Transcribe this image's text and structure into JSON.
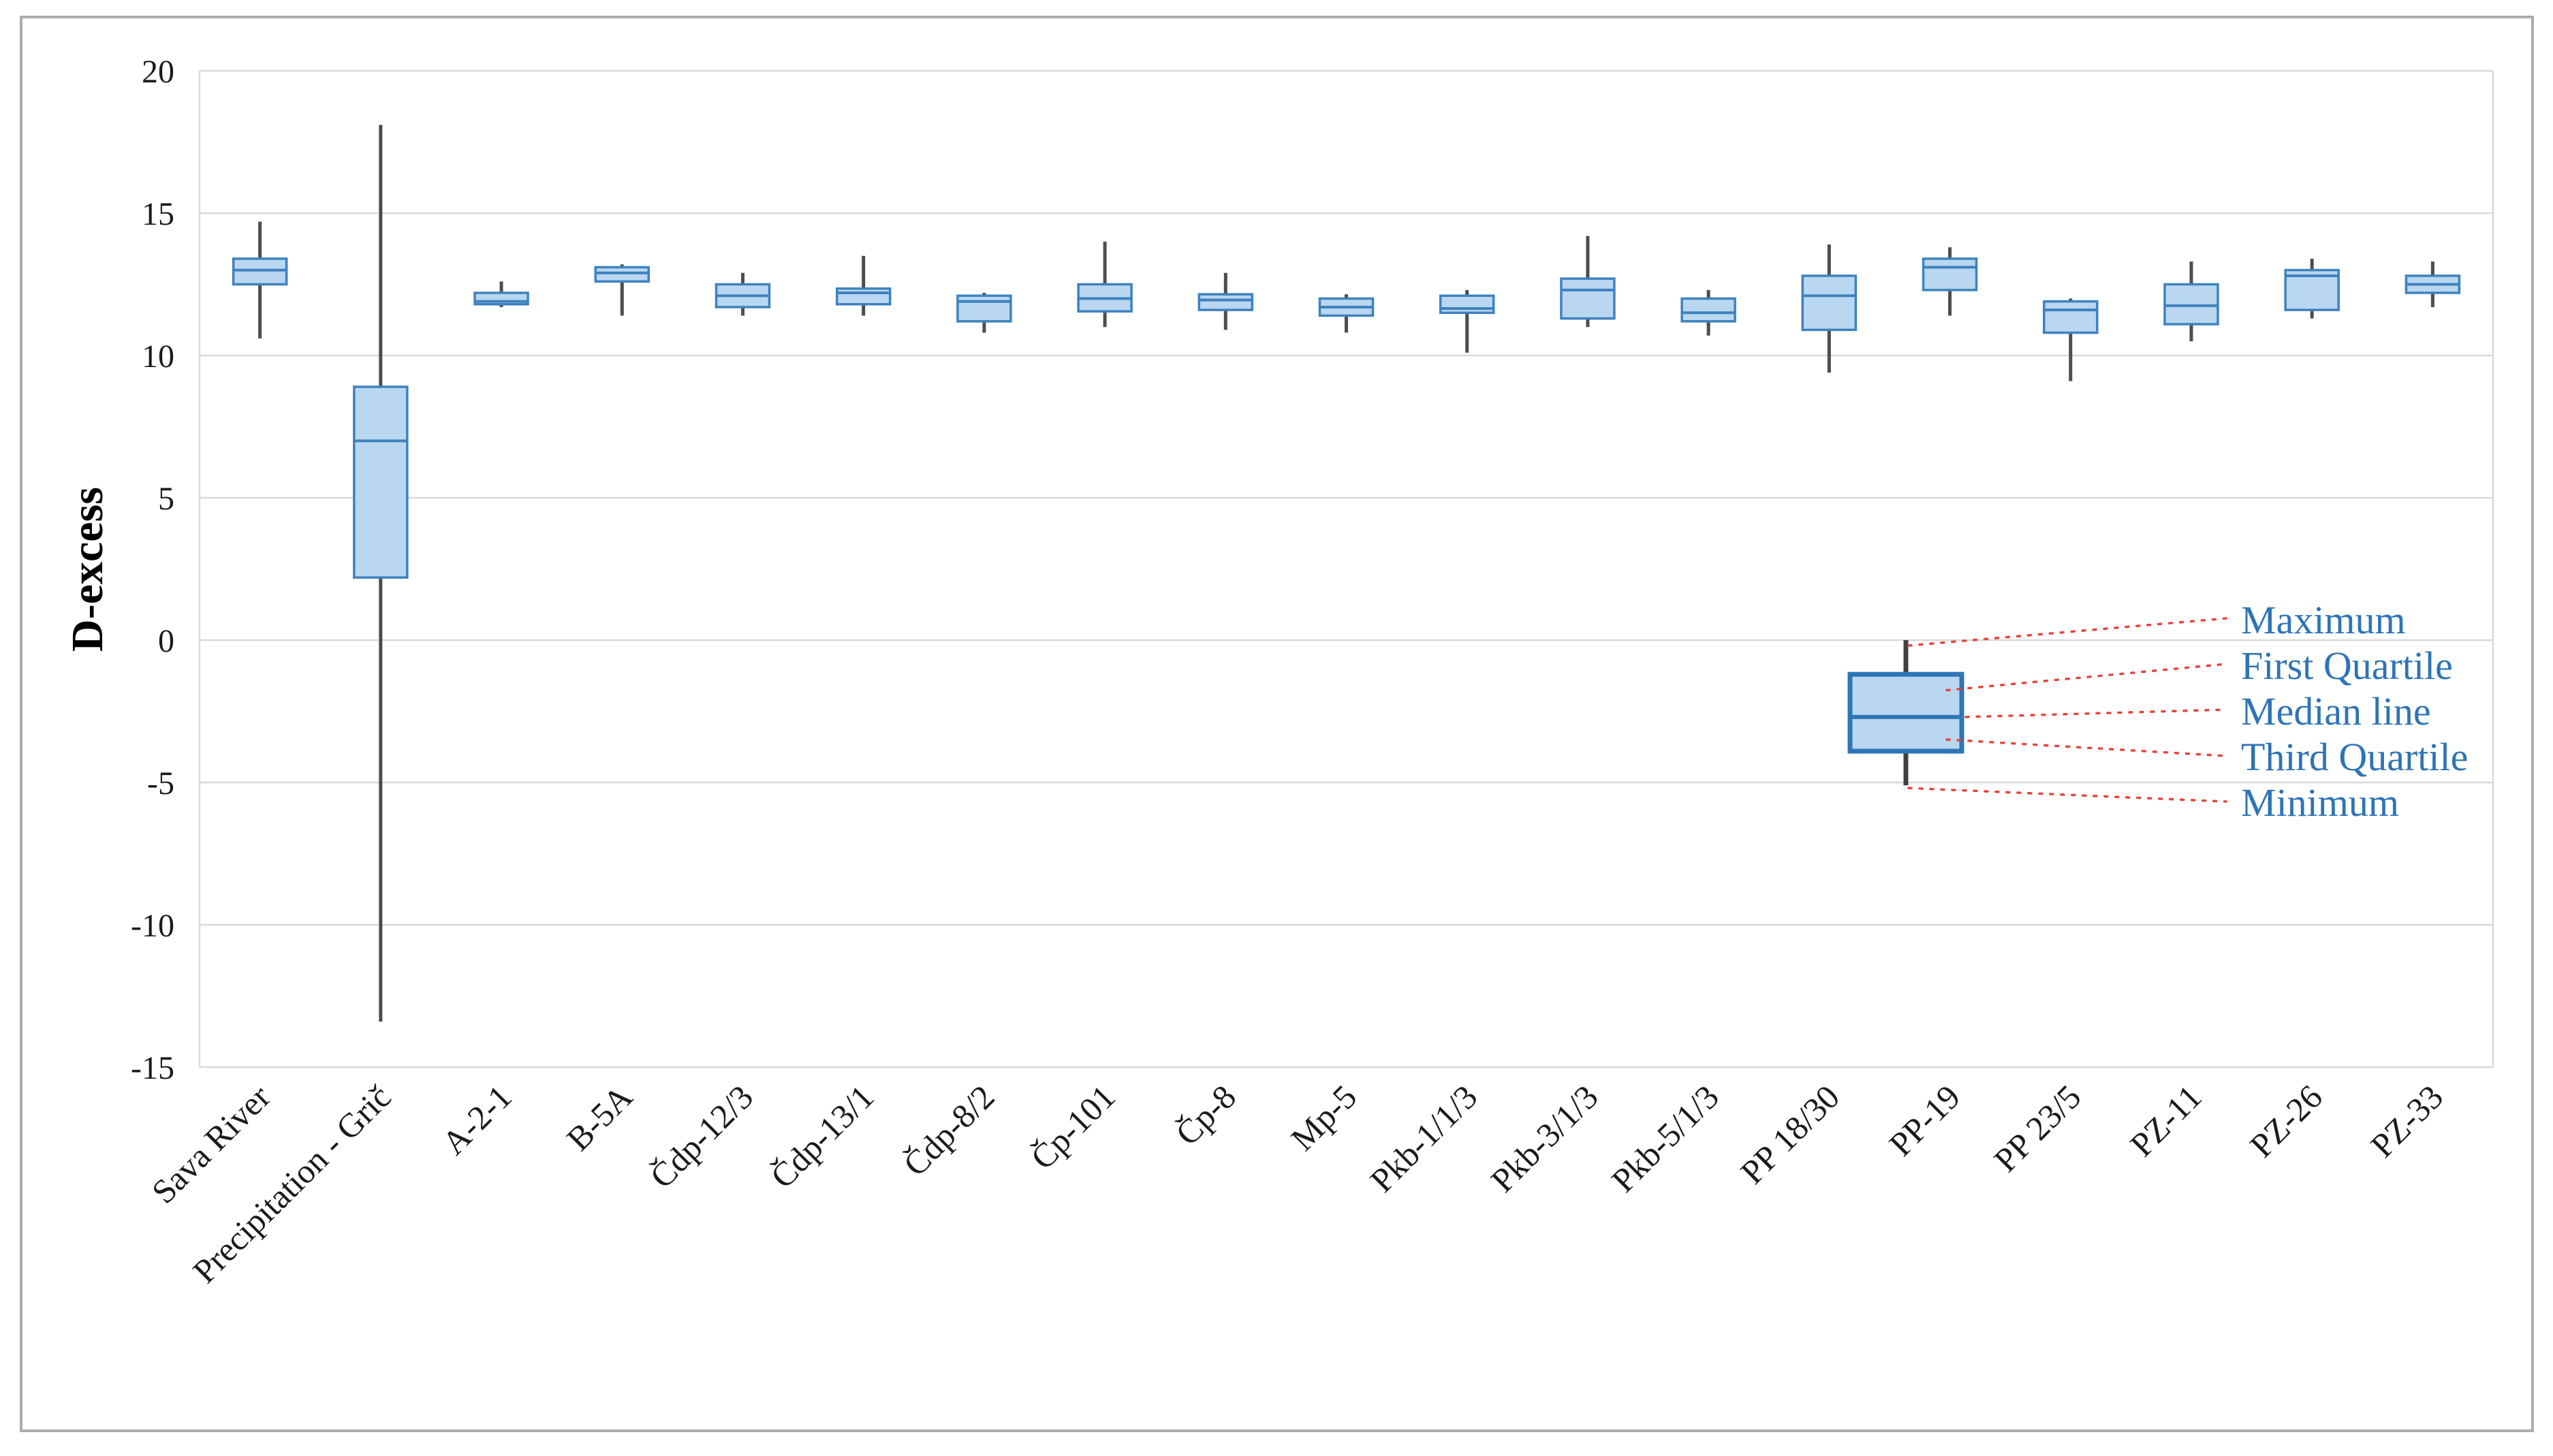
{
  "chart_data": {
    "type": "boxplot",
    "title": "",
    "xlabel": "",
    "ylabel": "D-excess",
    "ylim": [
      -15,
      20
    ],
    "yticks": [
      20,
      15,
      10,
      5,
      0,
      -5,
      -10,
      -15
    ],
    "grid": "horizontal",
    "legend_position": "inside-bottom-right",
    "categories": [
      "Sava River",
      "Precipitation - Grič",
      "A-2-1",
      "B-5A",
      "Čdp-12/3",
      "Čdp-13/1",
      "Čdp-8/2",
      "Čp-101",
      "Čp-8",
      "Mp-5",
      "Pkb-1/1/3",
      "Pkb-3/1/3",
      "Pkb-5/1/3",
      "PP 18/30",
      "PP-19",
      "PP 23/5",
      "PZ-11",
      "PZ-26",
      "PZ-33"
    ],
    "series": [
      {
        "name": "Sava River",
        "min": 10.6,
        "q1": 12.5,
        "median": 13.0,
        "q3": 13.4,
        "max": 14.7
      },
      {
        "name": "Precipitation - Grič",
        "min": -13.4,
        "q1": 2.2,
        "median": 7.0,
        "q3": 8.9,
        "max": 18.1
      },
      {
        "name": "A-2-1",
        "min": 11.7,
        "q1": 11.8,
        "median": 11.9,
        "q3": 12.2,
        "max": 12.6
      },
      {
        "name": "B-5A",
        "min": 11.4,
        "q1": 12.6,
        "median": 12.9,
        "q3": 13.1,
        "max": 13.2
      },
      {
        "name": "Čdp-12/3",
        "min": 11.4,
        "q1": 11.7,
        "median": 12.1,
        "q3": 12.5,
        "max": 12.9
      },
      {
        "name": "Čdp-13/1",
        "min": 11.4,
        "q1": 11.8,
        "median": 12.2,
        "q3": 12.35,
        "max": 13.5
      },
      {
        "name": "Čdp-8/2",
        "min": 10.8,
        "q1": 11.2,
        "median": 11.9,
        "q3": 12.1,
        "max": 12.2
      },
      {
        "name": "Čp-101",
        "min": 11.0,
        "q1": 11.55,
        "median": 12.0,
        "q3": 12.5,
        "max": 14.0
      },
      {
        "name": "Čp-8",
        "min": 10.9,
        "q1": 11.6,
        "median": 11.95,
        "q3": 12.15,
        "max": 12.9
      },
      {
        "name": "Mp-5",
        "min": 10.8,
        "q1": 11.4,
        "median": 11.7,
        "q3": 12.0,
        "max": 12.15
      },
      {
        "name": "Pkb-1/1/3",
        "min": 10.1,
        "q1": 11.5,
        "median": 11.65,
        "q3": 12.1,
        "max": 12.3
      },
      {
        "name": "Pkb-3/1/3",
        "min": 11.0,
        "q1": 11.3,
        "median": 12.3,
        "q3": 12.7,
        "max": 14.2
      },
      {
        "name": "Pkb-5/1/3",
        "min": 10.7,
        "q1": 11.2,
        "median": 11.5,
        "q3": 12.0,
        "max": 12.3
      },
      {
        "name": "PP 18/30",
        "min": 9.4,
        "q1": 10.9,
        "median": 12.1,
        "q3": 12.8,
        "max": 13.9
      },
      {
        "name": "PP-19",
        "min": 11.4,
        "q1": 12.3,
        "median": 13.1,
        "q3": 13.4,
        "max": 13.8
      },
      {
        "name": "PP 23/5",
        "min": 9.1,
        "q1": 10.8,
        "median": 11.6,
        "q3": 11.9,
        "max": 12.0
      },
      {
        "name": "PZ-11",
        "min": 10.5,
        "q1": 11.1,
        "median": 11.75,
        "q3": 12.5,
        "max": 13.3
      },
      {
        "name": "PZ-26",
        "min": 11.3,
        "q1": 11.6,
        "median": 12.8,
        "q3": 13.0,
        "max": 13.4
      },
      {
        "name": "PZ-33",
        "min": 11.7,
        "q1": 12.2,
        "median": 12.5,
        "q3": 12.8,
        "max": 13.3
      }
    ],
    "legend": {
      "labels": [
        "Maximum",
        "First Quartile",
        "Median line",
        "Third Quartile",
        "Minimum"
      ],
      "sample": {
        "min": -5.1,
        "q1": -3.9,
        "median": -2.7,
        "q3": -1.2,
        "max": 0.0
      },
      "label_color": "#2E74B5",
      "leader_color": "#E8433A"
    },
    "colors": {
      "box_fill": "#B9D7F0",
      "box_border": "#3E82BE",
      "median_line": "#3E82BE",
      "whisker": "#4D4D4D",
      "gridline": "#D9D9D9",
      "figure_border": "#ACACAC",
      "legend_box_border": "#2E75B6",
      "tick_text": "#1A1A1A"
    }
  }
}
